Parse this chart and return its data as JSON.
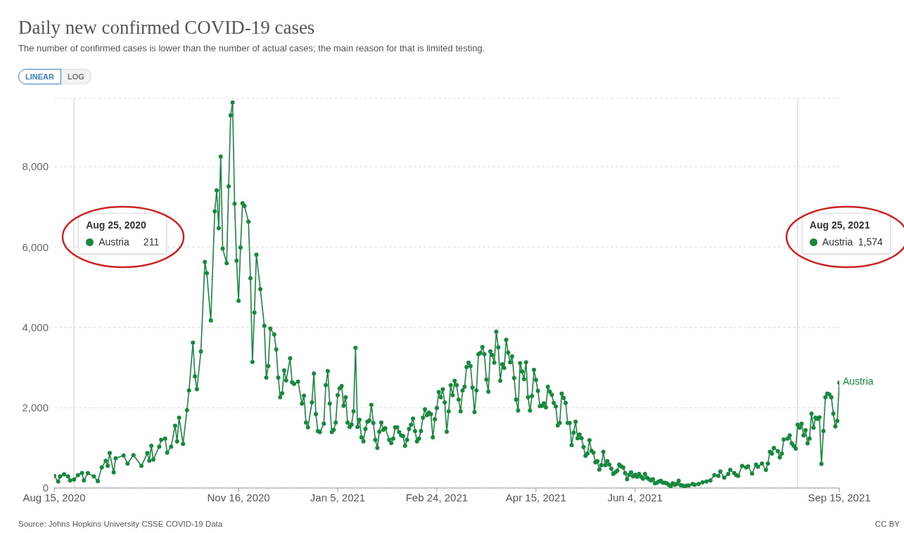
{
  "chart_data": {
    "type": "line",
    "title": "Daily new confirmed COVID-19 cases",
    "subtitle": "The number of confirmed cases is lower than the number of actual cases; the main reason for that is limited testing.",
    "annotations": [
      "Source: Johns Hopkins University CSSE COVID-19 Data",
      "CC BY",
      "LINEAR",
      "LOG",
      "Aug 25, 2020",
      "211",
      "Aug 25, 2021",
      "1,574"
    ],
    "x": [
      "2020-08-15",
      "2020-08-17",
      "2020-08-18",
      "2020-08-20",
      "2020-08-22",
      "2020-08-23",
      "2020-08-25",
      "2020-08-27",
      "2020-08-29",
      "2020-08-30",
      "2020-09-01",
      "2020-09-04",
      "2020-09-06",
      "2020-09-08",
      "2020-09-10",
      "2020-09-11",
      "2020-09-12",
      "2020-09-14",
      "2020-09-15",
      "2020-09-19",
      "2020-09-21",
      "2020-09-24",
      "2020-09-28",
      "2020-10-01",
      "2020-10-02",
      "2020-10-03",
      "2020-10-04",
      "2020-10-07",
      "2020-10-08",
      "2020-10-10",
      "2020-10-11",
      "2020-10-13",
      "2020-10-15",
      "2020-10-16",
      "2020-10-17",
      "2020-10-19",
      "2020-10-21",
      "2020-10-22",
      "2020-10-24",
      "2020-10-25",
      "2020-10-26",
      "2020-10-28",
      "2020-10-30",
      "2020-10-31",
      "2020-11-02",
      "2020-11-04",
      "2020-11-05",
      "2020-11-06",
      "2020-11-07",
      "2020-11-08",
      "2020-11-10",
      "2020-11-11",
      "2020-11-12",
      "2020-11-13",
      "2020-11-14",
      "2020-11-15",
      "2020-11-16",
      "2020-11-17",
      "2020-11-18",
      "2020-11-19",
      "2020-11-21",
      "2020-11-22",
      "2020-11-23",
      "2020-11-24",
      "2020-11-25",
      "2020-11-27",
      "2020-11-29",
      "2020-11-30",
      "2020-12-01",
      "2020-12-02",
      "2020-12-04",
      "2020-12-05",
      "2020-12-06",
      "2020-12-07",
      "2020-12-08",
      "2020-12-09",
      "2020-12-10",
      "2020-12-12",
      "2020-12-13",
      "2020-12-14",
      "2020-12-16",
      "2020-12-18",
      "2020-12-19",
      "2020-12-20",
      "2020-12-21",
      "2020-12-23",
      "2020-12-24",
      "2020-12-25",
      "2020-12-26",
      "2020-12-27",
      "2020-12-29",
      "2020-12-30",
      "2020-12-31",
      "2021-01-01",
      "2021-01-02",
      "2021-01-03",
      "2021-01-04",
      "2021-01-05",
      "2021-01-06",
      "2021-01-07",
      "2021-01-08",
      "2021-01-09",
      "2021-01-10",
      "2021-01-11",
      "2021-01-12",
      "2021-01-13",
      "2021-01-14",
      "2021-01-15",
      "2021-01-16",
      "2021-01-17",
      "2021-01-18",
      "2021-01-19",
      "2021-01-20",
      "2021-01-21",
      "2021-01-22",
      "2021-01-23",
      "2021-01-24",
      "2021-01-25",
      "2021-01-26",
      "2021-01-27",
      "2021-01-28",
      "2021-01-29",
      "2021-01-31",
      "2021-02-01",
      "2021-02-02",
      "2021-02-03",
      "2021-02-04",
      "2021-02-05",
      "2021-02-06",
      "2021-02-07",
      "2021-02-08",
      "2021-02-09",
      "2021-02-10",
      "2021-02-11",
      "2021-02-12",
      "2021-02-13",
      "2021-02-14",
      "2021-02-15",
      "2021-02-16",
      "2021-02-17",
      "2021-02-18",
      "2021-02-19",
      "2021-02-20",
      "2021-02-21",
      "2021-02-22",
      "2021-02-23",
      "2021-02-24",
      "2021-02-25",
      "2021-02-26",
      "2021-02-27",
      "2021-02-28",
      "2021-03-01",
      "2021-03-02",
      "2021-03-03",
      "2021-03-04",
      "2021-03-05",
      "2021-03-06",
      "2021-03-07",
      "2021-03-08",
      "2021-03-09",
      "2021-03-10",
      "2021-03-11",
      "2021-03-12",
      "2021-03-13",
      "2021-03-14",
      "2021-03-15",
      "2021-03-16",
      "2021-03-17",
      "2021-03-18",
      "2021-03-19",
      "2021-03-20",
      "2021-03-21",
      "2021-03-22",
      "2021-03-23",
      "2021-03-24",
      "2021-03-25",
      "2021-03-26",
      "2021-03-27",
      "2021-03-28",
      "2021-03-29",
      "2021-03-30",
      "2021-03-31",
      "2021-04-01",
      "2021-04-02",
      "2021-04-03",
      "2021-04-04",
      "2021-04-05",
      "2021-04-06",
      "2021-04-07",
      "2021-04-08",
      "2021-04-09",
      "2021-04-10",
      "2021-04-11",
      "2021-04-12",
      "2021-04-13",
      "2021-04-14",
      "2021-04-15",
      "2021-04-16",
      "2021-04-17",
      "2021-04-18",
      "2021-04-19",
      "2021-04-20",
      "2021-04-21",
      "2021-04-22",
      "2021-04-23",
      "2021-04-24",
      "2021-04-25",
      "2021-04-26",
      "2021-04-27",
      "2021-04-28",
      "2021-04-29",
      "2021-04-30",
      "2021-05-01",
      "2021-05-02",
      "2021-05-03",
      "2021-05-04",
      "2021-05-05",
      "2021-05-06",
      "2021-05-07",
      "2021-05-08",
      "2021-05-09",
      "2021-05-10",
      "2021-05-11",
      "2021-05-12",
      "2021-05-13",
      "2021-05-14",
      "2021-05-15",
      "2021-05-16",
      "2021-05-17",
      "2021-05-18",
      "2021-05-19",
      "2021-05-20",
      "2021-05-21",
      "2021-05-22",
      "2021-05-23",
      "2021-05-24",
      "2021-05-25",
      "2021-05-26",
      "2021-05-27",
      "2021-05-28",
      "2021-05-29",
      "2021-05-30",
      "2021-05-31",
      "2021-06-01",
      "2021-06-02",
      "2021-06-03",
      "2021-06-04",
      "2021-06-05",
      "2021-06-06",
      "2021-06-07",
      "2021-06-08",
      "2021-06-09",
      "2021-06-10",
      "2021-06-11",
      "2021-06-12",
      "2021-06-13",
      "2021-06-14",
      "2021-06-15",
      "2021-06-16",
      "2021-06-17",
      "2021-06-18",
      "2021-06-19",
      "2021-06-20",
      "2021-06-21",
      "2021-06-22",
      "2021-06-23",
      "2021-06-24",
      "2021-06-25",
      "2021-06-26",
      "2021-06-27",
      "2021-06-28",
      "2021-06-29",
      "2021-06-30",
      "2021-07-01",
      "2021-07-03",
      "2021-07-04",
      "2021-07-06",
      "2021-07-08",
      "2021-07-10",
      "2021-07-12",
      "2021-07-14",
      "2021-07-16",
      "2021-07-17",
      "2021-07-19",
      "2021-07-21",
      "2021-07-22",
      "2021-07-24",
      "2021-07-25",
      "2021-07-26",
      "2021-07-28",
      "2021-07-30",
      "2021-07-31",
      "2021-08-02",
      "2021-08-04",
      "2021-08-05",
      "2021-08-07",
      "2021-08-09",
      "2021-08-10",
      "2021-08-11",
      "2021-08-12",
      "2021-08-13",
      "2021-08-15",
      "2021-08-16",
      "2021-08-17",
      "2021-08-18",
      "2021-08-20",
      "2021-08-21",
      "2021-08-22",
      "2021-08-23",
      "2021-08-24",
      "2021-08-25",
      "2021-08-26",
      "2021-08-27",
      "2021-08-28",
      "2021-08-29",
      "2021-08-30",
      "2021-08-31",
      "2021-09-01",
      "2021-09-02",
      "2021-09-03",
      "2021-09-04",
      "2021-09-05",
      "2021-09-06",
      "2021-09-07",
      "2021-09-08",
      "2021-09-09",
      "2021-09-10",
      "2021-09-11",
      "2021-09-12",
      "2021-09-13",
      "2021-09-14",
      "2021-09-15"
    ],
    "series": [
      {
        "name": "Austria",
        "color": "#18883f",
        "values": [
          300,
          160,
          290,
          340,
          290,
          190,
          211,
          320,
          370,
          190,
          370,
          290,
          170,
          510,
          680,
          550,
          870,
          390,
          740,
          810,
          610,
          820,
          550,
          870,
          680,
          1050,
          710,
          1030,
          1200,
          1230,
          880,
          1030,
          1550,
          1160,
          1750,
          1100,
          1940,
          2430,
          3620,
          2780,
          2460,
          3400,
          5630,
          5350,
          4170,
          6890,
          7410,
          6470,
          8250,
          5960,
          5600,
          7510,
          9280,
          9600,
          7080,
          5660,
          4660,
          5990,
          7090,
          7020,
          6630,
          5220,
          3140,
          4370,
          5810,
          4950,
          4040,
          2750,
          3040,
          3970,
          3820,
          3450,
          2750,
          2260,
          2360,
          2930,
          2680,
          3230,
          2630,
          2590,
          2650,
          2100,
          2300,
          1630,
          1510,
          2130,
          2850,
          1840,
          1420,
          1390,
          1600,
          2560,
          2910,
          2100,
          1390,
          1450,
          1630,
          2310,
          2480,
          2540,
          2050,
          2260,
          1630,
          1520,
          1580,
          1910,
          3490,
          1520,
          1700,
          1260,
          1160,
          1470,
          1650,
          1680,
          2070,
          1620,
          1200,
          1000,
          1400,
          1630,
          1450,
          1490,
          1200,
          1120,
          1230,
          1510,
          1510,
          1390,
          1310,
          1290,
          1050,
          1200,
          1470,
          1570,
          1730,
          1420,
          1160,
          1230,
          1420,
          1750,
          1960,
          1810,
          1880,
          1840,
          1260,
          1710,
          1990,
          2390,
          2260,
          2460,
          2130,
          1400,
          1910,
          2560,
          2310,
          2670,
          2560,
          2200,
          1910,
          2430,
          2520,
          3010,
          3120,
          3040,
          2500,
          1890,
          2430,
          3330,
          3360,
          3510,
          3330,
          2700,
          2400,
          3400,
          3310,
          3120,
          3890,
          3500,
          2670,
          3080,
          2990,
          3690,
          3370,
          3130,
          3280,
          2740,
          2200,
          1930,
          3110,
          2900,
          2710,
          3130,
          2260,
          1930,
          2290,
          2940,
          2690,
          2420,
          2040,
          2050,
          2110,
          2010,
          2520,
          2400,
          2320,
          2120,
          2030,
          1560,
          1620,
          2350,
          2240,
          2120,
          1620,
          1620,
          1070,
          1380,
          1650,
          1240,
          1330,
          1240,
          1020,
          800,
          860,
          1190,
          930,
          880,
          640,
          670,
          460,
          570,
          900,
          570,
          670,
          580,
          480,
          350,
          390,
          430,
          580,
          540,
          510,
          370,
          220,
          330,
          390,
          290,
          330,
          280,
          350,
          280,
          230,
          350,
          260,
          220,
          190,
          220,
          120,
          130,
          160,
          180,
          130,
          130,
          120,
          80,
          40,
          120,
          80,
          100,
          180,
          70,
          60,
          20,
          60,
          60,
          100,
          80,
          100,
          140,
          160,
          190,
          320,
          300,
          410,
          260,
          350,
          450,
          370,
          320,
          300,
          550,
          510,
          540,
          360,
          580,
          530,
          610,
          450,
          610,
          900,
          860,
          1000,
          920,
          760,
          860,
          1210,
          1230,
          1310,
          1110,
          1050,
          980,
          1574,
          1500,
          1600,
          1310,
          1440,
          1110,
          1230,
          1850,
          1500,
          1750,
          1720,
          1760,
          600,
          1420,
          2260,
          2350,
          2330,
          2260,
          1850,
          1530,
          1670,
          2620
        ]
      }
    ],
    "xlim": [
      "2020-08-15",
      "2021-09-15"
    ],
    "xticks": [
      {
        "value": "2020-08-15",
        "label": "Aug 15, 2020"
      },
      {
        "value": "2020-11-16",
        "label": "Nov 16, 2020"
      },
      {
        "value": "2021-01-05",
        "label": "Jan 5, 2021"
      },
      {
        "value": "2021-02-24",
        "label": "Feb 24, 2021"
      },
      {
        "value": "2021-04-15",
        "label": "Apr 15, 2021"
      },
      {
        "value": "2021-06-04",
        "label": "Jun 4, 2021"
      },
      {
        "value": "2021-09-15",
        "label": "Sep 15, 2021"
      }
    ],
    "ylim": [
      0,
      9700
    ],
    "yticks": [
      0,
      {
        "value": 2000,
        "label": "2,000"
      },
      {
        "value": 4000,
        "label": "4,000"
      },
      {
        "value": 6000,
        "label": "6,000"
      },
      {
        "value": 8000,
        "label": "8,000"
      }
    ],
    "ref_lines": [
      {
        "axis": "x",
        "value": "2020-08-25",
        "color": "#dddddd"
      },
      {
        "axis": "x",
        "value": "2021-08-25",
        "color": "#dddddd"
      }
    ],
    "grid": "y",
    "legend": "left",
    "marker": "circle",
    "line_style": "solid"
  }
}
